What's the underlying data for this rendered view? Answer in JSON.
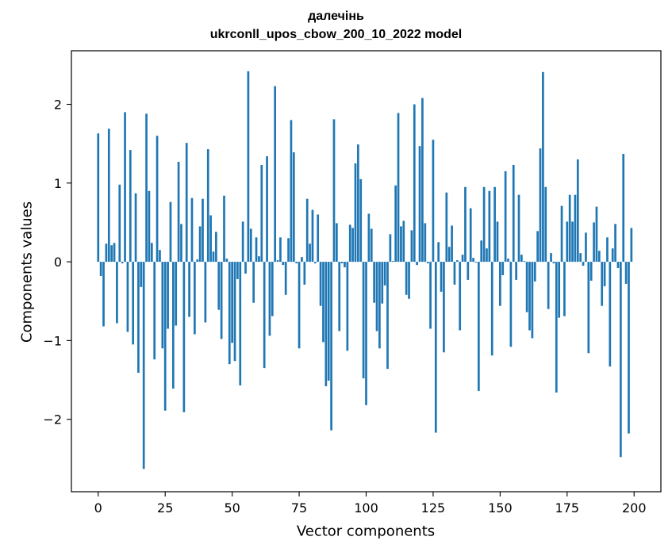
{
  "chart_data": {
    "type": "bar",
    "title": "далечінь",
    "subtitle": "ukrconll_upos_cbow_200_10_2022 model",
    "xlabel": "Vector components",
    "ylabel": "Components values",
    "xlim": [
      -10,
      210
    ],
    "ylim": [
      -2.92,
      2.68
    ],
    "xticks": [
      0,
      25,
      50,
      75,
      100,
      125,
      150,
      175,
      200
    ],
    "yticks": [
      -2,
      -1,
      0,
      1,
      2
    ],
    "ytick_labels": [
      "−2",
      "−1",
      "0",
      "1",
      "2"
    ],
    "grid": false,
    "bar_color": "#1f77b4",
    "values": [
      1.63,
      -0.18,
      -0.82,
      0.23,
      1.69,
      0.21,
      0.24,
      -0.78,
      0.98,
      -0.02,
      1.9,
      -0.89,
      1.42,
      -1.05,
      0.87,
      -1.41,
      -0.32,
      -2.63,
      1.88,
      0.9,
      0.24,
      -1.24,
      1.6,
      0.15,
      -1.1,
      -1.89,
      -0.85,
      0.76,
      -1.61,
      -0.81,
      1.27,
      0.48,
      -1.91,
      1.51,
      -0.7,
      0.81,
      -0.92,
      0.03,
      0.45,
      0.8,
      -0.77,
      1.43,
      0.59,
      0.13,
      0.38,
      -0.61,
      -0.98,
      0.84,
      0.04,
      -1.3,
      -1.03,
      -1.26,
      -0.22,
      -1.57,
      0.51,
      -0.15,
      2.42,
      0.42,
      -0.52,
      0.31,
      0.07,
      1.23,
      -1.35,
      1.34,
      -0.94,
      -0.69,
      2.23,
      0.02,
      0.31,
      -0.04,
      -0.42,
      0.3,
      1.8,
      1.39,
      -0.02,
      -1.1,
      0.06,
      -0.29,
      0.8,
      0.23,
      0.66,
      -0.02,
      0.6,
      -0.56,
      -1.02,
      -1.58,
      -1.51,
      -2.14,
      1.81,
      0.49,
      -0.88,
      -0.02,
      -0.07,
      -1.13,
      0.47,
      0.43,
      1.25,
      1.49,
      1.05,
      -1.48,
      -1.82,
      0.61,
      0.42,
      -0.52,
      -0.88,
      -1.1,
      -0.53,
      -0.3,
      -1.36,
      0.35,
      0.01,
      0.97,
      1.89,
      0.45,
      0.52,
      -0.42,
      -0.47,
      0.4,
      2.0,
      -0.04,
      1.47,
      2.08,
      0.49,
      -0.02,
      -0.85,
      1.55,
      -2.17,
      0.25,
      -0.38,
      -1.15,
      0.88,
      0.19,
      0.46,
      -0.29,
      0.02,
      -0.87,
      0.09,
      0.95,
      -0.23,
      0.68,
      0.05,
      -0.01,
      -1.64,
      0.27,
      0.95,
      0.17,
      0.9,
      -1.19,
      0.95,
      0.51,
      -0.56,
      -0.17,
      1.15,
      0.04,
      -1.08,
      1.23,
      -0.23,
      0.85,
      0.09,
      0.01,
      -0.64,
      -0.87,
      -0.97,
      -0.25,
      0.39,
      1.44,
      2.41,
      0.95,
      -0.6,
      0.11,
      -0.02,
      -1.66,
      -0.71,
      0.71,
      -0.69,
      0.51,
      0.85,
      0.51,
      0.85,
      1.3,
      0.11,
      -0.05,
      0.37,
      -1.16,
      -0.24,
      0.5,
      0.7,
      0.14,
      -0.56,
      -0.31,
      0.31,
      -1.33,
      0.17,
      0.48,
      -0.08,
      -2.48,
      1.37,
      -0.28,
      -2.18,
      0.43
    ]
  }
}
